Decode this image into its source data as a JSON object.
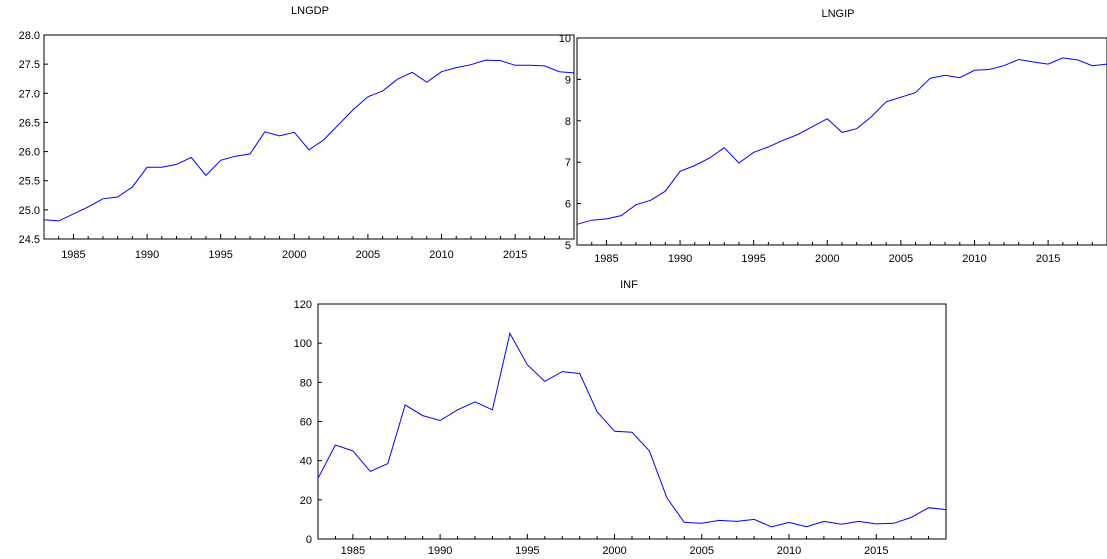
{
  "chart_data": [
    {
      "type": "line",
      "title": "LNGDP",
      "x": [
        1983,
        1984,
        1985,
        1986,
        1987,
        1988,
        1989,
        1990,
        1991,
        1992,
        1993,
        1994,
        1995,
        1996,
        1997,
        1998,
        1999,
        2000,
        2001,
        2002,
        2003,
        2004,
        2005,
        2006,
        2007,
        2008,
        2009,
        2010,
        2011,
        2012,
        2013,
        2014,
        2015,
        2016,
        2017,
        2018,
        2019
      ],
      "series": [
        {
          "values": [
            24.83,
            24.81,
            24.93,
            25.05,
            25.19,
            25.22,
            25.39,
            25.73,
            25.73,
            25.78,
            25.9,
            25.59,
            25.85,
            25.92,
            25.96,
            26.34,
            26.27,
            26.33,
            26.03,
            26.2,
            26.46,
            26.72,
            26.94,
            27.04,
            27.24,
            27.36,
            27.19,
            27.37,
            27.44,
            27.49,
            27.57,
            27.56,
            27.48,
            27.48,
            27.47,
            27.37,
            27.35
          ]
        }
      ],
      "xlim": [
        1983,
        2019
      ],
      "ylim": [
        24.5,
        28.0
      ],
      "xticks": [
        1985,
        1990,
        1995,
        2000,
        2005,
        2010,
        2015
      ],
      "yticks": [
        24.5,
        25.0,
        25.5,
        26.0,
        26.5,
        27.0,
        27.5,
        28.0
      ],
      "ytick_labels": [
        "24.5",
        "25.0",
        "25.5",
        "26.0",
        "26.5",
        "27.0",
        "27.5",
        "28.0"
      ],
      "line_color": "#0000ff",
      "grid": false
    },
    {
      "type": "line",
      "title": "LNGIP",
      "x": [
        1983,
        1984,
        1985,
        1986,
        1987,
        1988,
        1989,
        1990,
        1991,
        1992,
        1993,
        1994,
        1995,
        1996,
        1997,
        1998,
        1999,
        2000,
        2001,
        2002,
        2003,
        2004,
        2005,
        2006,
        2007,
        2008,
        2009,
        2010,
        2011,
        2012,
        2013,
        2014,
        2015,
        2016,
        2017,
        2018,
        2019
      ],
      "series": [
        {
          "values": [
            5.5,
            5.6,
            5.63,
            5.71,
            5.97,
            6.08,
            6.3,
            6.78,
            6.92,
            7.1,
            7.35,
            6.98,
            7.24,
            7.37,
            7.53,
            7.67,
            7.86,
            8.05,
            7.72,
            7.81,
            8.1,
            8.46,
            8.57,
            8.68,
            9.03,
            9.1,
            9.04,
            9.22,
            9.24,
            9.33,
            9.48,
            9.42,
            9.37,
            9.52,
            9.47,
            9.33,
            9.37
          ]
        }
      ],
      "xlim": [
        1983,
        2019
      ],
      "ylim": [
        5,
        10
      ],
      "xticks": [
        1985,
        1990,
        1995,
        2000,
        2005,
        2010,
        2015
      ],
      "yticks": [
        5,
        6,
        7,
        8,
        9,
        10
      ],
      "ytick_labels": [
        "5",
        "6",
        "7",
        "8",
        "9",
        "10"
      ],
      "line_color": "#0000ff",
      "grid": false
    },
    {
      "type": "line",
      "title": "INF",
      "x": [
        1983,
        1984,
        1985,
        1986,
        1987,
        1988,
        1989,
        1990,
        1991,
        1992,
        1993,
        1994,
        1995,
        1996,
        1997,
        1998,
        1999,
        2000,
        2001,
        2002,
        2003,
        2004,
        2005,
        2006,
        2007,
        2008,
        2009,
        2010,
        2011,
        2012,
        2013,
        2014,
        2015,
        2016,
        2017,
        2018,
        2019
      ],
      "series": [
        {
          "values": [
            31,
            48,
            45,
            34.5,
            38.5,
            68.5,
            63,
            60.5,
            66,
            70,
            66,
            105,
            89,
            80.5,
            85.5,
            84.5,
            65,
            55,
            54.5,
            45,
            21,
            8.5,
            8,
            9.5,
            9,
            10,
            6.2,
            8.5,
            6.3,
            9,
            7.5,
            9,
            7.7,
            8,
            11,
            16,
            15
          ]
        }
      ],
      "xlim": [
        1983,
        2019
      ],
      "ylim": [
        0,
        120
      ],
      "xticks": [
        1985,
        1990,
        1995,
        2000,
        2005,
        2010,
        2015
      ],
      "yticks": [
        0,
        20,
        40,
        60,
        80,
        100,
        120
      ],
      "ytick_labels": [
        "0",
        "20",
        "40",
        "60",
        "80",
        "100",
        "120"
      ],
      "line_color": "#0000ff",
      "grid": false
    }
  ]
}
